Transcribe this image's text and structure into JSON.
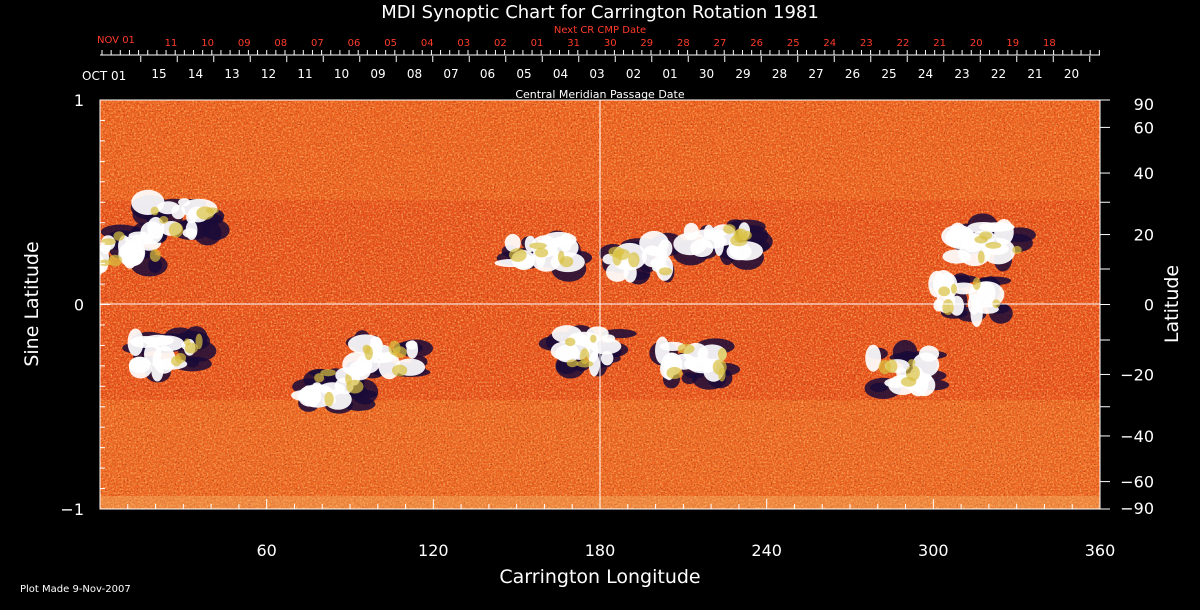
{
  "chart_data": {
    "type": "heatmap",
    "title": "MDI Synoptic Chart for Carrington Rotation 1981",
    "xlabel": "Carrington Longitude",
    "ylabel_left": "Sine Latitude",
    "ylabel_right": "Latitude",
    "xlim": [
      0,
      360
    ],
    "ylim": [
      -1,
      1
    ],
    "x_ticks": [
      "60",
      "120",
      "180",
      "240",
      "300",
      "360"
    ],
    "x_tick_values": [
      60,
      120,
      180,
      240,
      300,
      360
    ],
    "y_left_ticks": [
      "1",
      "0",
      "−1"
    ],
    "y_left_tick_values": [
      1,
      0,
      -1
    ],
    "y_right_ticks": [
      "90",
      "60",
      "40",
      "20",
      "0",
      "−20",
      "−40",
      "−60",
      "−90"
    ],
    "y_right_tick_values": [
      90,
      60,
      40,
      20,
      0,
      -20,
      -40,
      -60,
      -90
    ],
    "top_axis_label": "Central Meridian Passage Date",
    "top_axis_start": "OCT 01",
    "top_axis_dates": [
      "15",
      "14",
      "13",
      "12",
      "11",
      "10",
      "09",
      "08",
      "07",
      "06",
      "05",
      "04",
      "03",
      "02",
      "01",
      "30",
      "29",
      "28",
      "27",
      "26",
      "25",
      "24",
      "23",
      "22",
      "21",
      "20"
    ],
    "next_axis_label": "Next CR CMP Date",
    "next_axis_start": "NOV 01",
    "next_axis_dates": [
      "11",
      "10",
      "09",
      "08",
      "07",
      "06",
      "05",
      "04",
      "03",
      "02",
      "01",
      "31",
      "30",
      "29",
      "28",
      "27",
      "26",
      "25",
      "24",
      "23",
      "22",
      "21",
      "20",
      "19",
      "18"
    ],
    "grid_lines": {
      "longitude": [
        180
      ],
      "sine_latitude": [
        0
      ]
    },
    "active_regions": [
      {
        "lon": 10,
        "sinlat": 0.27,
        "polarity": "mixed"
      },
      {
        "lon": 30,
        "sinlat": 0.42,
        "polarity": "mixed"
      },
      {
        "lon": 25,
        "sinlat": -0.25,
        "polarity": "mixed"
      },
      {
        "lon": 85,
        "sinlat": -0.4,
        "polarity": "mixed"
      },
      {
        "lon": 105,
        "sinlat": -0.25,
        "polarity": "mixed"
      },
      {
        "lon": 160,
        "sinlat": 0.25,
        "polarity": "mixed"
      },
      {
        "lon": 175,
        "sinlat": -0.22,
        "polarity": "mixed"
      },
      {
        "lon": 195,
        "sinlat": 0.22,
        "polarity": "mixed"
      },
      {
        "lon": 215,
        "sinlat": -0.28,
        "polarity": "mixed"
      },
      {
        "lon": 225,
        "sinlat": 0.3,
        "polarity": "mixed"
      },
      {
        "lon": 290,
        "sinlat": -0.32,
        "polarity": "mixed"
      },
      {
        "lon": 320,
        "sinlat": 0.3,
        "polarity": "mixed"
      },
      {
        "lon": 312,
        "sinlat": 0.04,
        "polarity": "mixed"
      }
    ],
    "colors": {
      "background": "#000000",
      "field_base": "#e8521c",
      "positive": "#ffffff",
      "negative": "#1a0a38",
      "next_dates": "#ff3b2a",
      "axes": "#ffffff"
    }
  },
  "footer": {
    "plot_made": "Plot Made  9-Nov-2007"
  }
}
